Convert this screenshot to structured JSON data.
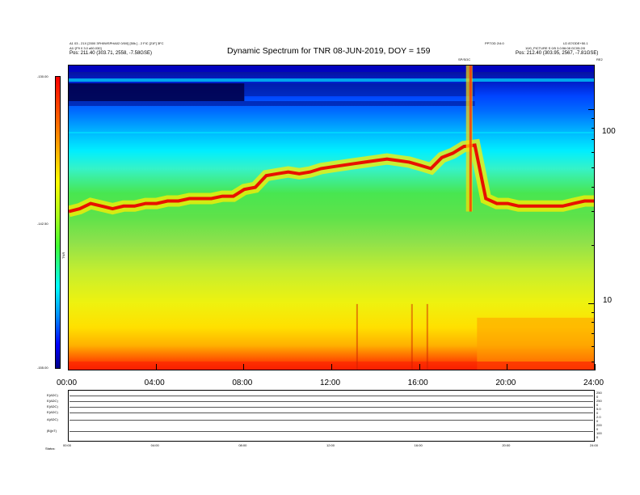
{
  "header": {
    "title": "Dynamic Spectrum for TNR 08-JUN-2019, DOY = 159",
    "top_left_line1": "A1 03 - 21X [2000 3FH0WSPHA02 0/0/0] [50k ] - 2 FIC [21F] 3FC",
    "top_left_line2": "A1/ [F9 0 3.0 a50.030]",
    "top_left_line3": "Pos: 211.40 (303.71, 2558, -7.58GSE)",
    "top_right_line1": "PPTOD 2/4:0",
    "top_right_line2": "LD 87/ODE+50.1",
    "top_right_line3": "10/0_PICTURE S 0/5 3.0:56:08 GC05:2/0",
    "top_right_line4": "Pos: 212.40 (303.95, 2567, -7.81GSE)",
    "top_right_line5": "RE2",
    "marker_label": "SP/SOC"
  },
  "colorbar": {
    "label": "TNR",
    "ticks": [
      "-130.00",
      "-142.50",
      "-155.00"
    ]
  },
  "chart_data": {
    "type": "heatmap",
    "title": "Dynamic Spectrum for TNR 08-JUN-2019, DOY = 159",
    "x_axis": {
      "unit": "hours",
      "range": [
        0,
        24
      ],
      "tick_labels": [
        "00:00",
        "04:00",
        "08:00",
        "12:00",
        "16:00",
        "20:00",
        "24:00"
      ]
    },
    "y_axis": {
      "unit": "kHz",
      "scale": "log",
      "range": [
        4.5,
        170
      ],
      "tick_labels": [
        "100",
        "10"
      ],
      "tick_values": [
        100,
        10
      ]
    },
    "colorbar_range": [
      -155.0,
      -130.0
    ],
    "plasma_line": {
      "hours": [
        0,
        0.5,
        1,
        1.5,
        2,
        2.5,
        3,
        3.5,
        4,
        4.5,
        5,
        5.5,
        6,
        6.5,
        7,
        7.5,
        8,
        8.5,
        9,
        9.5,
        10,
        10.5,
        11,
        11.5,
        12,
        12.5,
        13,
        13.5,
        14,
        14.5,
        15,
        15.5,
        16,
        16.5,
        17,
        17.5,
        18,
        18.5,
        19,
        19.5,
        20,
        20.5,
        21,
        21.5,
        22,
        22.5,
        23,
        23.5,
        24
      ],
      "freq_khz": [
        30,
        31,
        33,
        32,
        31,
        32,
        32,
        33,
        33,
        34,
        34,
        35,
        35,
        35,
        36,
        36,
        39,
        40,
        46,
        47,
        48,
        47,
        48,
        50,
        51,
        52,
        53,
        54,
        55,
        56,
        55,
        54,
        52,
        50,
        57,
        60,
        65,
        66,
        35,
        33,
        33,
        32,
        32,
        32,
        32,
        32,
        33,
        34,
        34
      ]
    },
    "grid": false
  },
  "bottom_panels": {
    "row_labels": [
      "E(ADC)",
      "E(ADC)",
      "E(ADC)",
      "E(ADC)",
      "A(ADC)",
      "|B|(nT)"
    ],
    "right_scale_labels": [
      "250",
      "0",
      "250",
      "0",
      "5.0",
      "0",
      "2.0",
      "0",
      "200",
      "0",
      "100",
      "0"
    ],
    "time_labels": [
      "00:00",
      "04:00",
      "08:00",
      "12:00",
      "16:00",
      "20:00",
      "24:00"
    ],
    "status_label": "Status:"
  }
}
